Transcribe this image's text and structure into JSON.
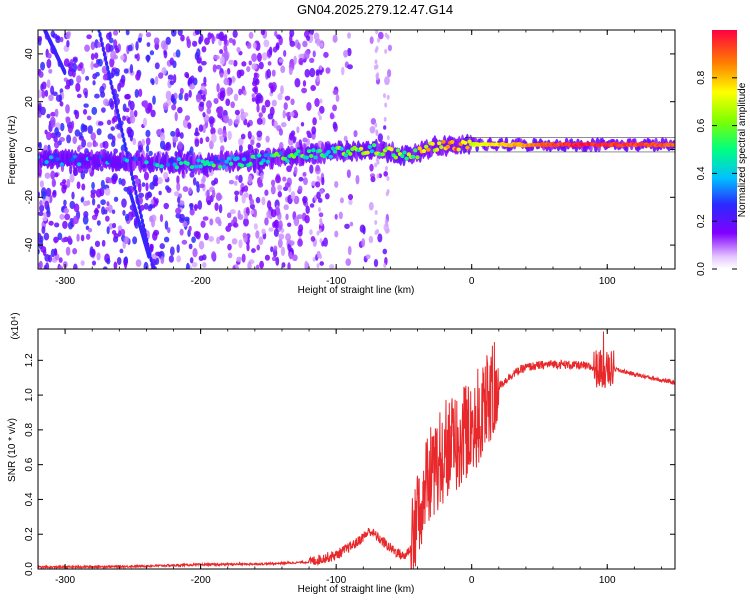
{
  "title": "GN04.2025.279.12.47.G14",
  "colors": {
    "snr_line": "#e8282a",
    "axis": "#000000",
    "background": "#ffffff"
  },
  "chart_data": [
    {
      "type": "heatmap",
      "name": "spectrogram",
      "xlabel": "Height of straight line (km)",
      "ylabel": "Frequency (Hz)",
      "xlim": [
        -320,
        150
      ],
      "ylim": [
        -50,
        50
      ],
      "xticks": [
        -300,
        -200,
        -100,
        0,
        100
      ],
      "yticks": [
        -40,
        -20,
        0,
        20,
        40
      ],
      "colorbar": {
        "label": "Normalized spectral amplitude",
        "range": [
          0.0,
          1.0
        ],
        "ticks": [
          "0.0",
          "0.2",
          "0.4",
          "0.6",
          "0.8"
        ],
        "tick_values": [
          0.0,
          0.2,
          0.4,
          0.6,
          0.8
        ]
      },
      "signal_track": [
        {
          "x": -320,
          "y": -4,
          "amp": 0.25
        },
        {
          "x": -250,
          "y": -5,
          "amp": 0.32
        },
        {
          "x": -200,
          "y": -6,
          "amp": 0.42
        },
        {
          "x": -150,
          "y": -4,
          "amp": 0.45
        },
        {
          "x": -100,
          "y": -1,
          "amp": 0.55
        },
        {
          "x": -70,
          "y": 0,
          "amp": 0.55
        },
        {
          "x": -45,
          "y": -3,
          "amp": 0.62
        },
        {
          "x": -30,
          "y": 1,
          "amp": 0.72
        },
        {
          "x": -10,
          "y": 2,
          "amp": 0.85
        },
        {
          "x": 0,
          "y": 2,
          "amp": 0.7
        },
        {
          "x": 40,
          "y": 2,
          "amp": 0.85
        },
        {
          "x": 80,
          "y": 2,
          "amp": 0.98
        },
        {
          "x": 100,
          "y": 2,
          "amp": 0.95
        },
        {
          "x": 150,
          "y": 2,
          "amp": 0.9
        }
      ]
    },
    {
      "type": "line",
      "name": "snr",
      "xlabel": "Height of straight line (km)",
      "ylabel": "SNR (10 * v/v)",
      "scale_label": "(x10⁴)",
      "xlim": [
        -320,
        150
      ],
      "ylim": [
        0,
        1.38
      ],
      "xticks": [
        -300,
        -200,
        -100,
        0,
        100
      ],
      "yticks": [
        "0.0",
        "0.2",
        "0.4",
        "0.6",
        "0.8",
        "1.0",
        "1.2"
      ],
      "ytick_values": [
        0.0,
        0.2,
        0.4,
        0.6,
        0.8,
        1.0,
        1.2
      ],
      "series": [
        {
          "name": "SNR",
          "x": [
            -320,
            -250,
            -200,
            -150,
            -120,
            -100,
            -85,
            -75,
            -60,
            -50,
            -45,
            -40,
            -30,
            -20,
            -10,
            0,
            10,
            20,
            30,
            40,
            60,
            80,
            95,
            100,
            105,
            120,
            150
          ],
          "y": [
            0.01,
            0.015,
            0.025,
            0.03,
            0.04,
            0.08,
            0.15,
            0.22,
            0.12,
            0.07,
            0.12,
            0.3,
            0.55,
            0.68,
            0.75,
            0.82,
            0.95,
            1.05,
            1.12,
            1.16,
            1.18,
            1.17,
            1.15,
            1.14,
            1.15,
            1.12,
            1.07
          ]
        }
      ]
    }
  ]
}
